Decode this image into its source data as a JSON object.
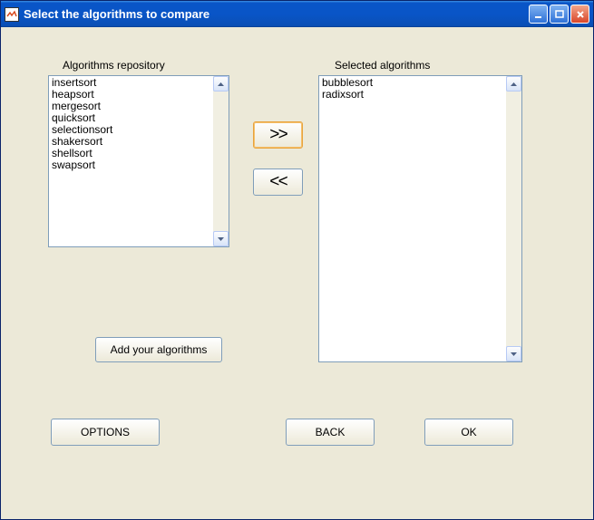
{
  "window": {
    "title": "Select the algorithms to compare"
  },
  "labels": {
    "repository": "Algorithms repository",
    "selected": "Selected algorithms"
  },
  "repository_items": [
    "insertsort",
    "heapsort",
    "mergesort",
    "quicksort",
    "selectionsort",
    "shakersort",
    "shellsort",
    "swapsort"
  ],
  "selected_items": [
    "bubblesort",
    "radixsort"
  ],
  "buttons": {
    "move_right": ">>",
    "move_left": "<<",
    "add": "Add your algorithms",
    "options": "OPTIONS",
    "back": "BACK",
    "ok": "OK"
  },
  "colors": {
    "panel_bg": "#ece9d8",
    "titlebar_start": "#0955c7",
    "listbox_border": "#7f9db9",
    "highlight_border": "#e8a33d"
  }
}
